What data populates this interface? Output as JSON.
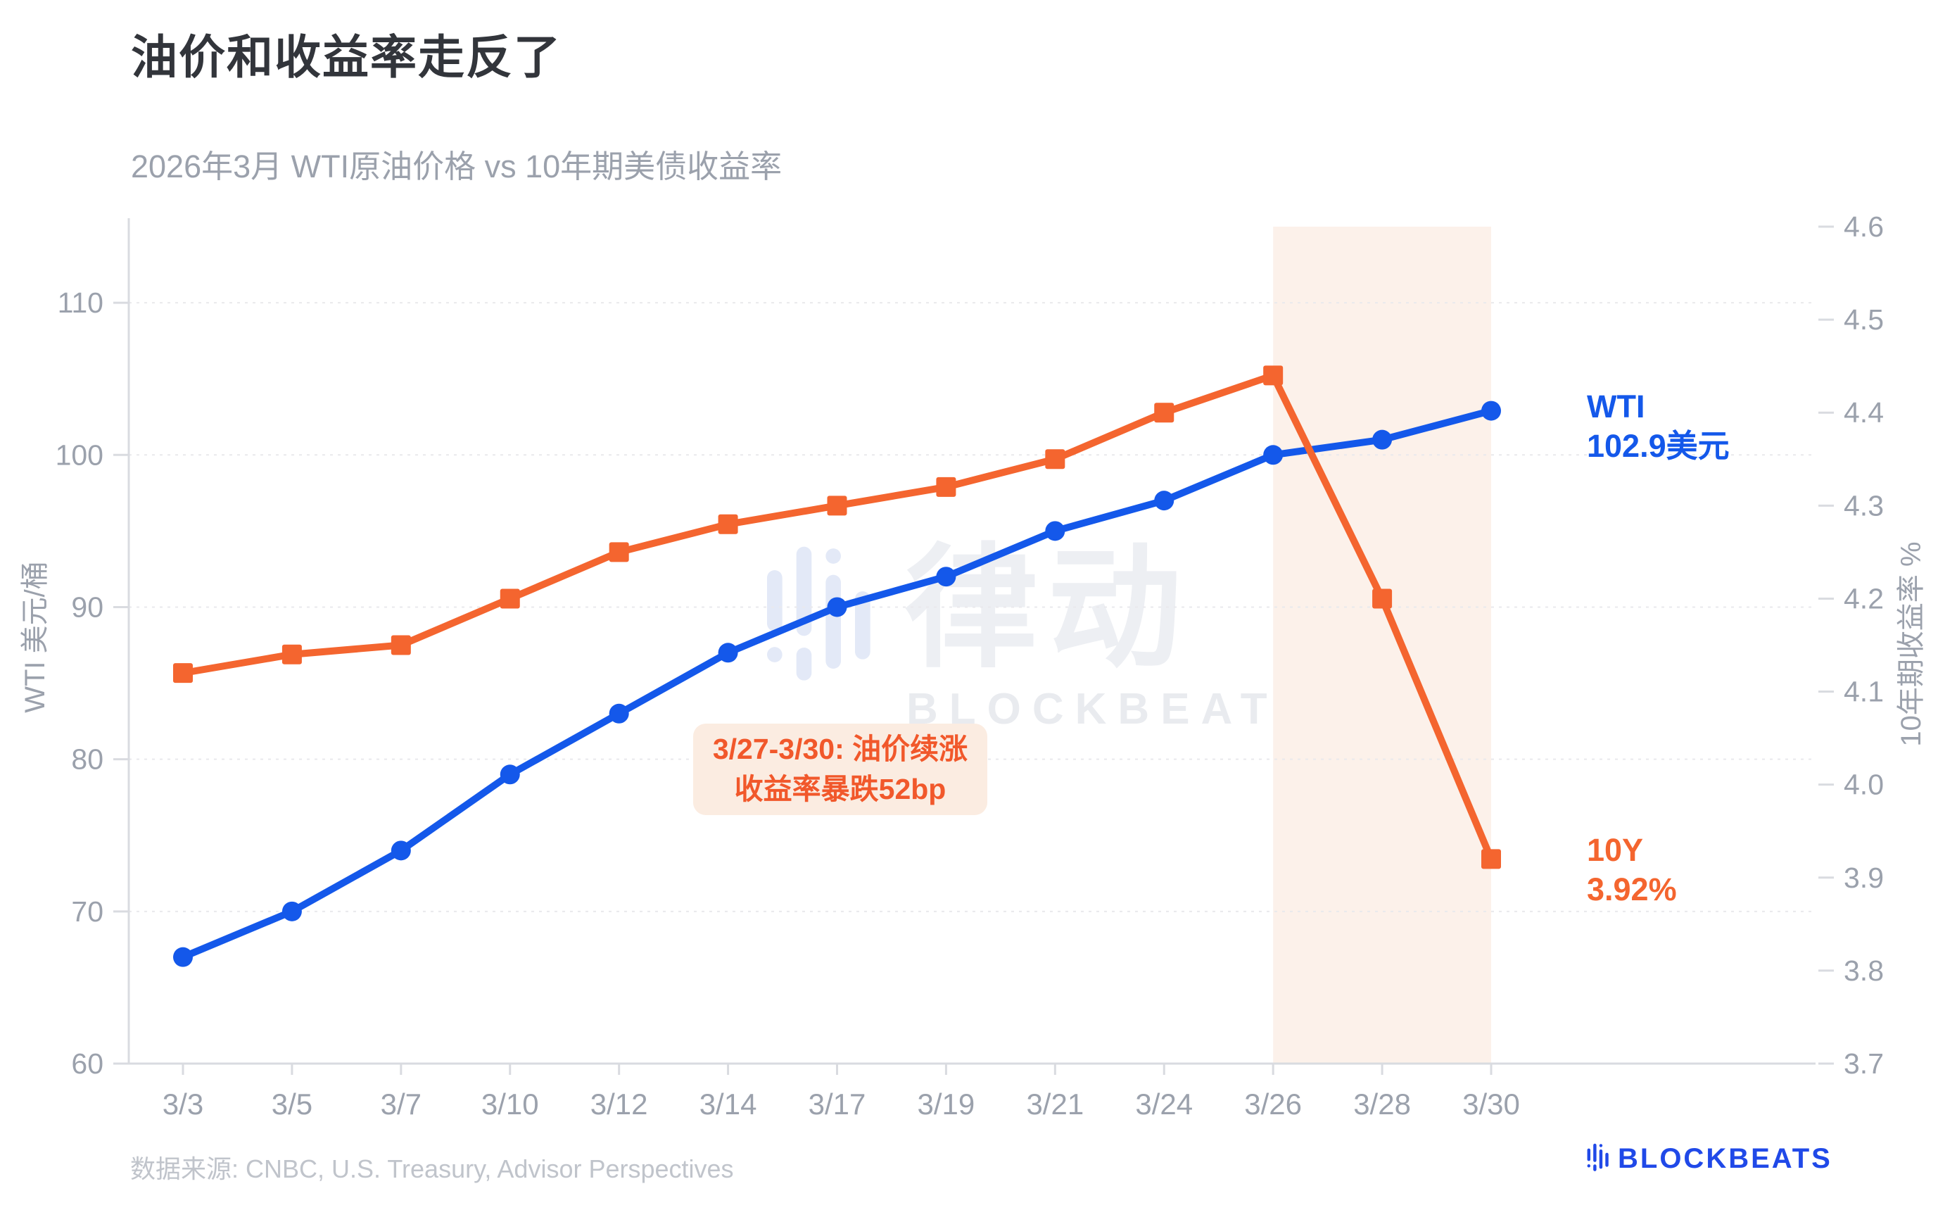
{
  "title": "油价和收益率走反了",
  "subtitle": "2026年3月 WTI原油价格 vs 10年期美债收益率",
  "watermark": {
    "cn": "律动",
    "en": "BLOCKBEATS"
  },
  "footer": {
    "source": "数据来源: CNBC, U.S. Treasury, Advisor Perspectives",
    "logo_text": "BLOCKBEATS"
  },
  "colors": {
    "wti_blue": "#1458ea",
    "yield_orange": "#f4652f",
    "annotation_text": "#f1582b",
    "annotation_bg": "#fbece1",
    "highlight_band": "#fcf1ea",
    "grid": "#e9e9ec",
    "axis_line": "#d9dbe0",
    "tick_text": "#9ba1ac",
    "title_text": "#32353b",
    "logo_blue": "#2049e8",
    "watermark_icon": "#e3e9f7"
  },
  "chart_data": {
    "type": "line",
    "title": "油价和收益率走反了",
    "subtitle": "2026年3月 WTI原油价格 vs 10年期美债收益率",
    "x_categories": [
      "3/3",
      "3/5",
      "3/7",
      "3/10",
      "3/12",
      "3/14",
      "3/17",
      "3/19",
      "3/21",
      "3/24",
      "3/26",
      "3/28",
      "3/30"
    ],
    "series": [
      {
        "name": "WTI",
        "axis": "left",
        "marker": "circle",
        "color": "#1458ea",
        "values": [
          67,
          70,
          74,
          79,
          83,
          87,
          90,
          92,
          95,
          97,
          100,
          101,
          102.9
        ]
      },
      {
        "name": "10Y",
        "axis": "right",
        "marker": "square",
        "color": "#f4652f",
        "values": [
          4.12,
          4.14,
          4.15,
          4.2,
          4.25,
          4.28,
          4.3,
          4.32,
          4.35,
          4.4,
          4.44,
          4.2,
          3.92
        ]
      }
    ],
    "left_axis": {
      "title": "WTI 美元/桶",
      "ticks": [
        60,
        70,
        80,
        90,
        100,
        110
      ],
      "range": [
        60,
        115
      ]
    },
    "right_axis": {
      "title": "10年期收益率 %",
      "ticks": [
        3.7,
        3.8,
        3.9,
        4.0,
        4.1,
        4.2,
        4.3,
        4.4,
        4.5,
        4.6
      ],
      "range": [
        3.7,
        4.6
      ]
    },
    "highlight_band": {
      "from": "3/26",
      "to": "3/30"
    },
    "annotation": {
      "line1": "3/27-3/30: 油价续涨",
      "line2": "收益率暴跌52bp"
    },
    "end_labels": {
      "wti": [
        "WTI",
        "102.9美元"
      ],
      "yield": [
        "10Y",
        "3.92%"
      ]
    },
    "grid": "horizontal dashed lines at left-axis ticks",
    "legend": "none"
  }
}
